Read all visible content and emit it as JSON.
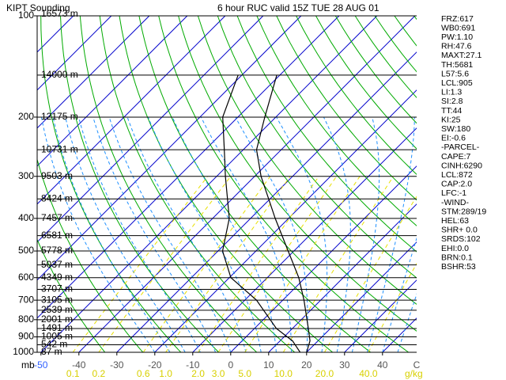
{
  "chart_data": {
    "type": "skew-t",
    "title": "KIPT Sounding",
    "subtitle": "6 hour RUC valid 15Z TUE 28 AUG 01",
    "y_label": "mb",
    "x_label": "C",
    "mixing_ratio_label": "g/kg",
    "log_scale": true,
    "ylim": [
      1000,
      100
    ],
    "yticks": [
      100,
      200,
      300,
      400,
      500,
      600,
      700,
      800,
      900,
      1000
    ],
    "xlim": [
      -51,
      49
    ],
    "xticks": [
      -50,
      -40,
      -30,
      -20,
      -10,
      0,
      10,
      20,
      30,
      40
    ],
    "mixing_ratio_ticks": [
      0.1,
      0.2,
      {
        "value": 0.6,
        "label": "0.6"
      },
      {
        "value": 1,
        "label": "1.0"
      },
      {
        "value": 2,
        "label": "2.0"
      },
      {
        "value": 3,
        "label": "3.0"
      },
      {
        "value": 5,
        "label": "5.0"
      },
      {
        "value": 10,
        "label": "10.0"
      },
      {
        "value": 20,
        "label": "20.0"
      },
      {
        "value": 40,
        "label": "40.0"
      }
    ],
    "height_levels": [
      {
        "pressure": 100,
        "label": "16573 m"
      },
      {
        "pressure": 150,
        "label": "14000 m"
      },
      {
        "pressure": 200,
        "label": "12175 m"
      },
      {
        "pressure": 250,
        "label": "10731 m"
      },
      {
        "pressure": 300,
        "label": "9503 m"
      },
      {
        "pressure": 350,
        "label": "8424 m"
      },
      {
        "pressure": 400,
        "label": "7457 m"
      },
      {
        "pressure": 450,
        "label": "6581 m"
      },
      {
        "pressure": 500,
        "label": "5778 m"
      },
      {
        "pressure": 550,
        "label": "5037 m"
      },
      {
        "pressure": 600,
        "label": "4349 m"
      },
      {
        "pressure": 650,
        "label": "3707 m"
      },
      {
        "pressure": 700,
        "label": "3105 m"
      },
      {
        "pressure": 750,
        "label": "2539 m"
      },
      {
        "pressure": 800,
        "label": "2001 m"
      },
      {
        "pressure": 850,
        "label": "1491 m"
      },
      {
        "pressure": 900,
        "label": "1005 m"
      },
      {
        "pressure": 950,
        "label": "542 m"
      },
      {
        "pressure": 1000,
        "label": "87 m"
      }
    ],
    "pressure": [
      1000,
      925,
      850,
      700,
      600,
      500,
      400,
      300,
      250,
      200,
      150
    ],
    "series": [
      {
        "color": "#000000",
        "values": [
          20,
          17.9,
          14.2,
          5.6,
          -1.7,
          -11.5,
          -23.5,
          -38.3,
          -46.5,
          -52.9,
          -60.8
        ]
      },
      {
        "color": "#000000",
        "values": [
          18.3,
          13.3,
          5.8,
          -6.9,
          -19.6,
          -28.8,
          -35.6,
          -47.7,
          -55,
          -64,
          -71
        ]
      }
    ],
    "isotherm_color": "#0000cc",
    "dry_adiabat_color": "#00aa00",
    "moist_adiabat_color": "#1e90ff",
    "mixing_ratio_color": "#e8e000",
    "stats": [
      "FRZ:617",
      "WB0:691",
      "PW:1.10",
      "RH:47.6",
      "MAXT:27.1",
      "TH:5681",
      "L57:5.6",
      "LCL:905",
      "LI:1.3",
      "SI:2.8",
      "TT:44",
      "KI:25",
      "SW:180",
      "EI:-0.6",
      "-PARCEL-",
      "CAPE:7",
      "CINH:6290",
      "LCL:872",
      "CAP:2.0",
      "LFC:-1",
      "-WIND-",
      "STM:289/19",
      "HEL:63",
      "SHR+ 0.0",
      "SRDS:102",
      "EHI:0.0",
      "BRN:0.1",
      "BSHR:53"
    ]
  }
}
